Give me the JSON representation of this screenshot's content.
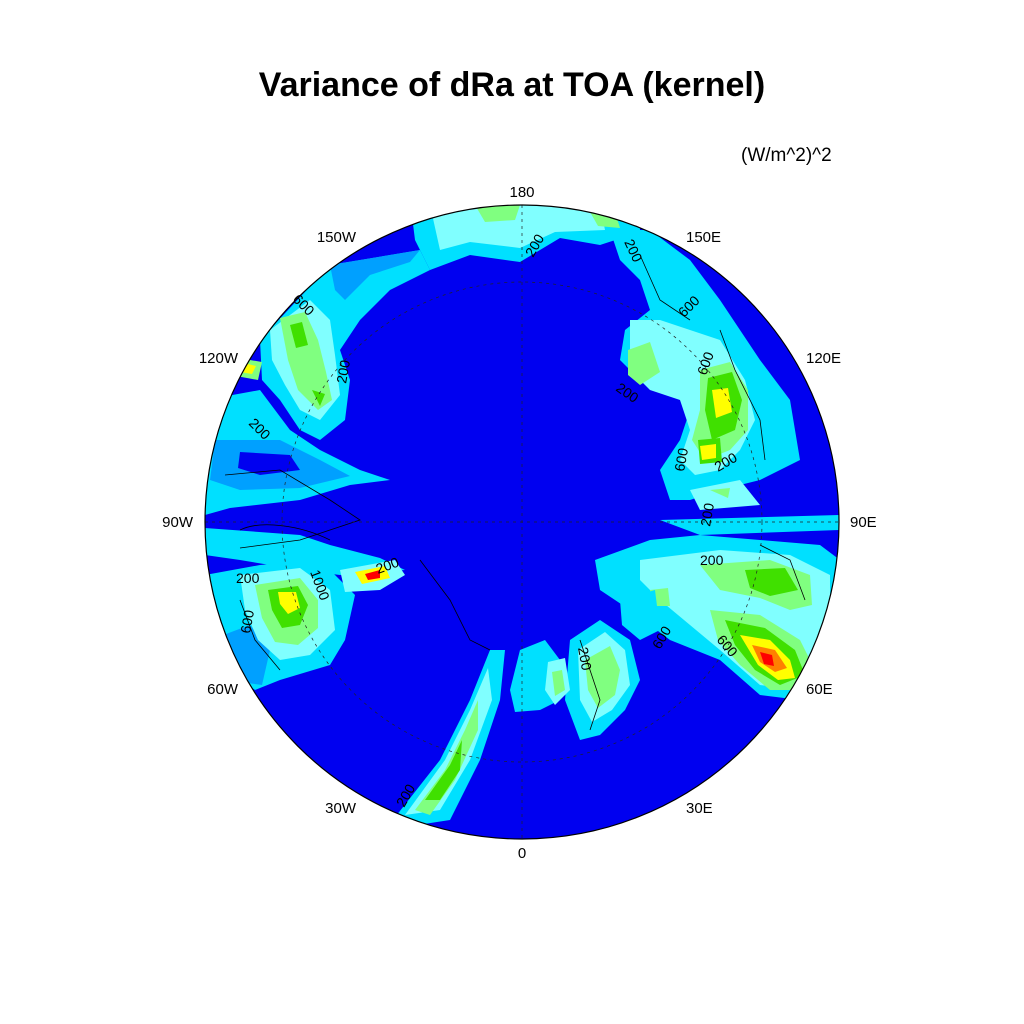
{
  "title": "Variance of dRa at TOA (kernel)",
  "units": "(W/m^2)^2",
  "longitude_labels": [
    "180",
    "150E",
    "120E",
    "90E",
    "60E",
    "30E",
    "0",
    "30W",
    "60W",
    "90W",
    "120W",
    "150W"
  ],
  "contour_labels": [
    "200",
    "200",
    "600",
    "600",
    "200",
    "200",
    "600",
    "200",
    "200",
    "600",
    "600",
    "200",
    "600",
    "200",
    "200",
    "1000",
    "200",
    "600",
    "200",
    "200"
  ],
  "colors": {
    "level_0": "#0000f0",
    "level_1": "#00a0ff",
    "level_2": "#00e0ff",
    "level_3": "#80ffff",
    "level_4": "#80ff80",
    "level_5": "#40e000",
    "level_6": "#ffff00",
    "level_7": "#ff8000",
    "level_8": "#ff0000"
  }
}
